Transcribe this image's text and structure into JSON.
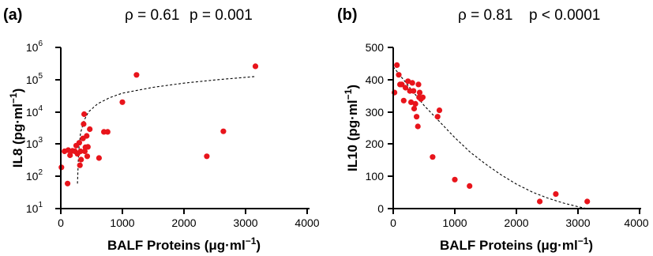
{
  "panels": [
    {
      "label": "(a)",
      "stats": {
        "rho": "ρ = 0.61",
        "p": "p = 0.001"
      },
      "ylabel_base": "IL8 (pg·ml",
      "ylabel_sup": "−1",
      "ylabel_close": ")",
      "xlabel_base": "BALF Proteins (μg·ml",
      "xlabel_sup": "−1",
      "xlabel_close": ")",
      "xticks": [
        "0",
        "1000",
        "2000",
        "3000",
        "4000"
      ],
      "yticks": [
        {
          "base": "10",
          "exp": "1"
        },
        {
          "base": "10",
          "exp": "2"
        },
        {
          "base": "10",
          "exp": "3"
        },
        {
          "base": "10",
          "exp": "4"
        },
        {
          "base": "10",
          "exp": "5"
        },
        {
          "base": "10",
          "exp": "6"
        }
      ]
    },
    {
      "label": "(b)",
      "stats": {
        "rho": "ρ = 0.81",
        "p": "p < 0.0001"
      },
      "ylabel_base": "IL10 (pg·ml",
      "ylabel_sup": "−1",
      "ylabel_close": ")",
      "xlabel_base": "BALF Proteins (μg·ml",
      "xlabel_sup": "−1",
      "xlabel_close": ")",
      "xticks": [
        "0",
        "1000",
        "2000",
        "3000",
        "4000"
      ],
      "yticks": [
        "0",
        "100",
        "200",
        "300",
        "400",
        "500"
      ]
    }
  ],
  "colors": {
    "points": "#e8141b",
    "axis": "#000000",
    "fit": "#000000"
  },
  "chart_data": [
    {
      "type": "scatter",
      "title": "(a)",
      "annotation": "ρ = 0.61   p = 0.001",
      "xlabel": "BALF Proteins (μg·ml−1)",
      "ylabel": "IL8 (pg·ml−1)",
      "xlim": [
        0,
        4000
      ],
      "ylim": [
        10,
        1000000
      ],
      "yscale": "log",
      "grid": false,
      "points": [
        [
          10,
          190
        ],
        [
          60,
          600
        ],
        [
          110,
          60
        ],
        [
          120,
          650
        ],
        [
          150,
          450
        ],
        [
          190,
          620
        ],
        [
          230,
          600
        ],
        [
          250,
          900
        ],
        [
          270,
          500
        ],
        [
          300,
          1100
        ],
        [
          310,
          220
        ],
        [
          320,
          600
        ],
        [
          330,
          330
        ],
        [
          360,
          1500
        ],
        [
          370,
          4200
        ],
        [
          380,
          8500
        ],
        [
          390,
          600
        ],
        [
          400,
          800
        ],
        [
          420,
          1800
        ],
        [
          430,
          420
        ],
        [
          440,
          820
        ],
        [
          470,
          2900
        ],
        [
          620,
          370
        ],
        [
          700,
          2400
        ],
        [
          760,
          2400
        ],
        [
          1000,
          20000
        ],
        [
          1230,
          140000
        ],
        [
          2370,
          420
        ],
        [
          2640,
          2500
        ],
        [
          3160,
          260000
        ]
      ],
      "trend": {
        "style": "dashed",
        "curve": [
          [
            270,
            60
          ],
          [
            290,
            600
          ],
          [
            320,
            2200
          ],
          [
            380,
            5500
          ],
          [
            450,
            10000
          ],
          [
            600,
            18000
          ],
          [
            800,
            28000
          ],
          [
            1000,
            38000
          ],
          [
            1500,
            58000
          ],
          [
            2000,
            78000
          ],
          [
            2500,
            98000
          ],
          [
            3160,
            125000
          ]
        ]
      }
    },
    {
      "type": "scatter",
      "title": "(b)",
      "annotation": "ρ = 0.81   p < 0.0001",
      "xlabel": "BALF Proteins (μg·ml−1)",
      "ylabel": "IL10 (pg·ml−1)",
      "xlim": [
        0,
        4000
      ],
      "ylim": [
        0,
        500
      ],
      "yscale": "linear",
      "grid": false,
      "points": [
        [
          20,
          360
        ],
        [
          60,
          445
        ],
        [
          90,
          415
        ],
        [
          110,
          385
        ],
        [
          140,
          385
        ],
        [
          170,
          335
        ],
        [
          200,
          375
        ],
        [
          240,
          395
        ],
        [
          270,
          365
        ],
        [
          290,
          330
        ],
        [
          310,
          390
        ],
        [
          330,
          365
        ],
        [
          340,
          310
        ],
        [
          360,
          325
        ],
        [
          380,
          285
        ],
        [
          400,
          255
        ],
        [
          410,
          385
        ],
        [
          420,
          345
        ],
        [
          430,
          360
        ],
        [
          450,
          340
        ],
        [
          480,
          345
        ],
        [
          640,
          160
        ],
        [
          720,
          285
        ],
        [
          750,
          305
        ],
        [
          1000,
          90
        ],
        [
          1240,
          70
        ],
        [
          2380,
          22
        ],
        [
          2640,
          45
        ],
        [
          3150,
          22
        ]
      ],
      "trend": {
        "style": "dashed",
        "curve": [
          [
            0,
            440
          ],
          [
            250,
            380
          ],
          [
            500,
            320
          ],
          [
            750,
            270
          ],
          [
            1000,
            220
          ],
          [
            1250,
            175
          ],
          [
            1500,
            138
          ],
          [
            1750,
            105
          ],
          [
            2000,
            76
          ],
          [
            2250,
            52
          ],
          [
            2500,
            33
          ],
          [
            2750,
            18
          ],
          [
            3000,
            6
          ],
          [
            3150,
            0
          ]
        ]
      }
    }
  ]
}
